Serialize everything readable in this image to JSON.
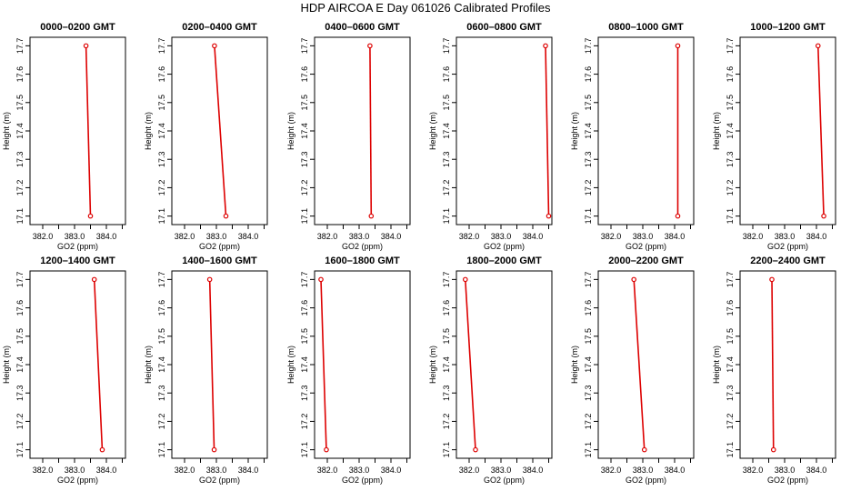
{
  "figure_title": "HDP  AIRCOA E  Day 061026  Calibrated Profiles",
  "chart_data": [
    {
      "type": "line",
      "title": "0000–0200 GMT",
      "xlabel": "GO2 (ppm)",
      "ylabel": "Height (m)",
      "xlim": [
        381.6,
        384.6
      ],
      "ylim": [
        17.07,
        17.73
      ],
      "xticks": [
        "382.0",
        "383.0",
        "384.0"
      ],
      "yticks": [
        "17.1",
        "17.2",
        "17.3",
        "17.4",
        "17.5",
        "17.6",
        "17.7"
      ],
      "marker": "open-circle",
      "color": "#dd0000",
      "x": [
        383.36,
        383.5
      ],
      "y": [
        17.7,
        17.1
      ]
    },
    {
      "type": "line",
      "title": "0200–0400 GMT",
      "xlabel": "GO2 (ppm)",
      "ylabel": "Height (m)",
      "xlim": [
        381.6,
        384.6
      ],
      "ylim": [
        17.07,
        17.73
      ],
      "xticks": [
        "382.0",
        "383.0",
        "384.0"
      ],
      "yticks": [
        "17.1",
        "17.2",
        "17.3",
        "17.4",
        "17.5",
        "17.6",
        "17.7"
      ],
      "marker": "open-circle",
      "color": "#dd0000",
      "x": [
        382.94,
        383.3
      ],
      "y": [
        17.7,
        17.1
      ]
    },
    {
      "type": "line",
      "title": "0400–0600 GMT",
      "xlabel": "GO2 (ppm)",
      "ylabel": "Height (m)",
      "xlim": [
        381.6,
        384.6
      ],
      "ylim": [
        17.07,
        17.73
      ],
      "xticks": [
        "382.0",
        "383.0",
        "384.0"
      ],
      "yticks": [
        "17.1",
        "17.2",
        "17.3",
        "17.4",
        "17.5",
        "17.6",
        "17.7"
      ],
      "marker": "open-circle",
      "color": "#dd0000",
      "x": [
        383.34,
        383.38
      ],
      "y": [
        17.7,
        17.1
      ]
    },
    {
      "type": "line",
      "title": "0600–0800 GMT",
      "xlabel": "GO2 (ppm)",
      "ylabel": "Height (m)",
      "xlim": [
        381.6,
        384.6
      ],
      "ylim": [
        17.07,
        17.73
      ],
      "xticks": [
        "382.0",
        "383.0",
        "384.0"
      ],
      "yticks": [
        "17.1",
        "17.2",
        "17.3",
        "17.4",
        "17.5",
        "17.6",
        "17.7"
      ],
      "marker": "open-circle",
      "color": "#dd0000",
      "x": [
        384.4,
        384.5
      ],
      "y": [
        17.7,
        17.1
      ]
    },
    {
      "type": "line",
      "title": "0800–1000 GMT",
      "xlabel": "GO2 (ppm)",
      "ylabel": "Height (m)",
      "xlim": [
        381.6,
        384.6
      ],
      "ylim": [
        17.07,
        17.73
      ],
      "xticks": [
        "382.0",
        "383.0",
        "384.0"
      ],
      "yticks": [
        "17.1",
        "17.2",
        "17.3",
        "17.4",
        "17.5",
        "17.6",
        "17.7"
      ],
      "marker": "open-circle",
      "color": "#dd0000",
      "x": [
        384.1,
        384.1
      ],
      "y": [
        17.7,
        17.1
      ]
    },
    {
      "type": "line",
      "title": "1000–1200 GMT",
      "xlabel": "GO2 (ppm)",
      "ylabel": "Height (m)",
      "xlim": [
        381.6,
        384.6
      ],
      "ylim": [
        17.07,
        17.73
      ],
      "xticks": [
        "382.0",
        "383.0",
        "384.0"
      ],
      "yticks": [
        "17.1",
        "17.2",
        "17.3",
        "17.4",
        "17.5",
        "17.6",
        "17.7"
      ],
      "marker": "open-circle",
      "color": "#dd0000",
      "x": [
        384.05,
        384.23
      ],
      "y": [
        17.7,
        17.1
      ]
    },
    {
      "type": "line",
      "title": "1200–1400 GMT",
      "xlabel": "GO2 (ppm)",
      "ylabel": "Height (m)",
      "xlim": [
        381.6,
        384.6
      ],
      "ylim": [
        17.07,
        17.73
      ],
      "xticks": [
        "382.0",
        "383.0",
        "384.0"
      ],
      "yticks": [
        "17.1",
        "17.2",
        "17.3",
        "17.4",
        "17.5",
        "17.6",
        "17.7"
      ],
      "marker": "open-circle",
      "color": "#dd0000",
      "x": [
        383.62,
        383.87
      ],
      "y": [
        17.7,
        17.1
      ]
    },
    {
      "type": "line",
      "title": "1400–1600 GMT",
      "xlabel": "GO2 (ppm)",
      "ylabel": "Height (m)",
      "xlim": [
        381.6,
        384.6
      ],
      "ylim": [
        17.07,
        17.73
      ],
      "xticks": [
        "382.0",
        "383.0",
        "384.0"
      ],
      "yticks": [
        "17.1",
        "17.2",
        "17.3",
        "17.4",
        "17.5",
        "17.6",
        "17.7"
      ],
      "marker": "open-circle",
      "color": "#dd0000",
      "x": [
        382.79,
        382.93
      ],
      "y": [
        17.7,
        17.1
      ]
    },
    {
      "type": "line",
      "title": "1600–1800 GMT",
      "xlabel": "GO2 (ppm)",
      "ylabel": "Height (m)",
      "xlim": [
        381.6,
        384.6
      ],
      "ylim": [
        17.07,
        17.73
      ],
      "xticks": [
        "382.0",
        "383.0",
        "384.0"
      ],
      "yticks": [
        "17.1",
        "17.2",
        "17.3",
        "17.4",
        "17.5",
        "17.6",
        "17.7"
      ],
      "marker": "open-circle",
      "color": "#dd0000",
      "x": [
        381.8,
        381.97
      ],
      "y": [
        17.7,
        17.1
      ]
    },
    {
      "type": "line",
      "title": "1800–2000 GMT",
      "xlabel": "GO2 (ppm)",
      "ylabel": "Height (m)",
      "xlim": [
        381.6,
        384.6
      ],
      "ylim": [
        17.07,
        17.73
      ],
      "xticks": [
        "382.0",
        "383.0",
        "384.0"
      ],
      "yticks": [
        "17.1",
        "17.2",
        "17.3",
        "17.4",
        "17.5",
        "17.6",
        "17.7"
      ],
      "marker": "open-circle",
      "color": "#dd0000",
      "x": [
        381.88,
        382.2
      ],
      "y": [
        17.7,
        17.1
      ]
    },
    {
      "type": "line",
      "title": "2000–2200 GMT",
      "xlabel": "GO2 (ppm)",
      "ylabel": "Height (m)",
      "xlim": [
        381.6,
        384.6
      ],
      "ylim": [
        17.07,
        17.73
      ],
      "xticks": [
        "382.0",
        "383.0",
        "384.0"
      ],
      "yticks": [
        "17.1",
        "17.2",
        "17.3",
        "17.4",
        "17.5",
        "17.6",
        "17.7"
      ],
      "marker": "open-circle",
      "color": "#dd0000",
      "x": [
        382.72,
        383.05
      ],
      "y": [
        17.7,
        17.1
      ]
    },
    {
      "type": "line",
      "title": "2200–2400 GMT",
      "xlabel": "GO2 (ppm)",
      "ylabel": "Height (m)",
      "xlim": [
        381.6,
        384.6
      ],
      "ylim": [
        17.07,
        17.73
      ],
      "xticks": [
        "382.0",
        "383.0",
        "384.0"
      ],
      "yticks": [
        "17.1",
        "17.2",
        "17.3",
        "17.4",
        "17.5",
        "17.6",
        "17.7"
      ],
      "marker": "open-circle",
      "color": "#dd0000",
      "x": [
        382.6,
        382.65
      ],
      "y": [
        17.7,
        17.1
      ]
    }
  ]
}
